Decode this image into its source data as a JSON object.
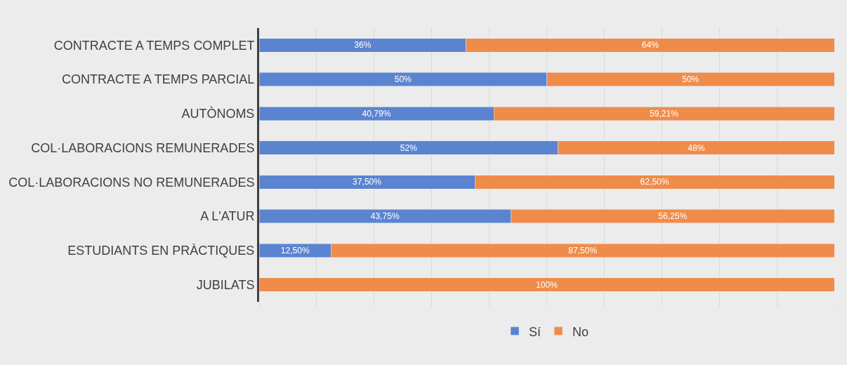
{
  "chart_data": {
    "type": "bar",
    "orientation": "horizontal",
    "stacked": true,
    "categories": [
      "CONTRACTE A TEMPS COMPLET",
      "CONTRACTE A TEMPS PARCIAL",
      "AUTÒNOMS",
      "COL·LABORACIONS REMUNERADES",
      "COL·LABORACIONS NO REMUNERADES",
      "A L'ATUR",
      "ESTUDIANTS EN PRÀCTIQUES",
      "JUBILATS"
    ],
    "series": [
      {
        "name": "Sí",
        "color": "#5b84d0",
        "values": [
          36,
          50,
          40.79,
          52,
          37.5,
          43.75,
          12.5,
          0
        ],
        "value_labels": [
          "36%",
          "50%",
          "40,79%",
          "52%",
          "37,50%",
          "43,75%",
          "12,50%",
          null
        ]
      },
      {
        "name": "No",
        "color": "#ef8c4a",
        "values": [
          64,
          50,
          59.21,
          48,
          62.5,
          56.25,
          87.5,
          100
        ],
        "value_labels": [
          "64%",
          "50%",
          "59,21%",
          "48%",
          "62,50%",
          "56,25%",
          "87,50%",
          "100%"
        ]
      }
    ],
    "xlim": [
      0,
      100
    ],
    "xticks": [
      {
        "value": 0,
        "label": null
      },
      {
        "value": 10,
        "label": null
      },
      {
        "value": 20,
        "label": null
      },
      {
        "value": 30,
        "label": null
      },
      {
        "value": 40,
        "label": null
      },
      {
        "value": 50,
        "label": null
      },
      {
        "value": 60,
        "label": null
      },
      {
        "value": 70,
        "label": null
      },
      {
        "value": 80,
        "label": null
      },
      {
        "value": 90,
        "label": null
      },
      {
        "value": 100,
        "label": null
      }
    ],
    "tick_labels": "y",
    "grid": "x",
    "legend": "bottom"
  }
}
